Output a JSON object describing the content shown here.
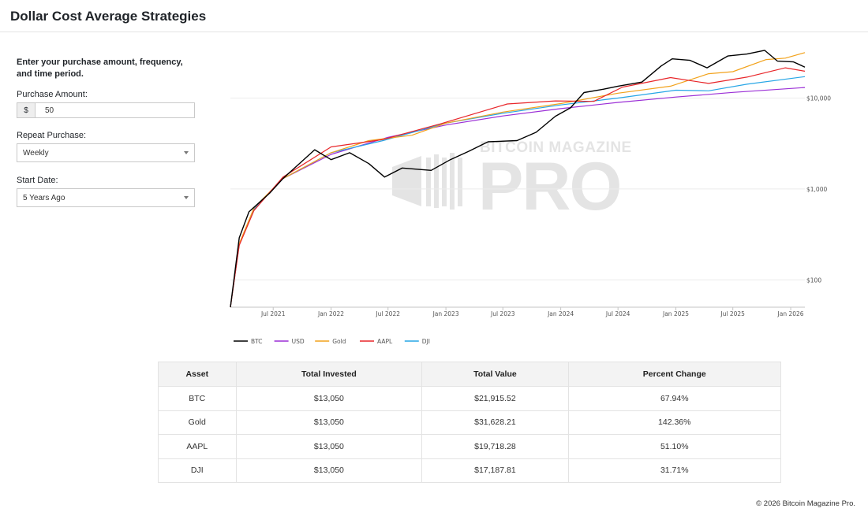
{
  "header": {
    "title": "Dollar Cost Average Strategies"
  },
  "form": {
    "intro": "Enter your purchase amount, frequency, and time period.",
    "amount_label": "Purchase Amount:",
    "currency_symbol": "$",
    "amount_value": "50",
    "repeat_label": "Repeat Purchase:",
    "repeat_value": "Weekly",
    "start_label": "Start Date:",
    "start_value": "5 Years Ago"
  },
  "watermark": "BITCOIN MAGAZINE PRO",
  "chart_data": {
    "type": "line",
    "title": "",
    "xlabel": "",
    "ylabel": "",
    "y_scale": "log",
    "ylim": [
      50,
      40000
    ],
    "xlim": [
      "2021-02-15",
      "2026-02-15"
    ],
    "grid": true,
    "legend_position": "bottom-left",
    "x_ticks": [
      "Jul 2021",
      "Jan 2022",
      "Jul 2022",
      "Jan 2023",
      "Jul 2023",
      "Jan 2024",
      "Jul 2024",
      "Jan 2025",
      "Jul 2025",
      "Jan 2026"
    ],
    "x_tick_dates": [
      "2021-07-01",
      "2022-01-01",
      "2022-07-01",
      "2023-01-01",
      "2023-07-01",
      "2024-01-01",
      "2024-07-01",
      "2025-01-01",
      "2025-07-01",
      "2026-01-01"
    ],
    "y_ticks": [
      {
        "value": 100,
        "label": "$100"
      },
      {
        "value": 1000,
        "label": "$1,000"
      },
      {
        "value": 10000,
        "label": "$10,000"
      }
    ],
    "series": [
      {
        "name": "BTC",
        "color": "#000000",
        "points": [
          [
            "2021-02-15",
            50
          ],
          [
            "2021-03-15",
            290
          ],
          [
            "2021-04-15",
            560
          ],
          [
            "2021-05-20",
            720
          ],
          [
            "2021-06-20",
            900
          ],
          [
            "2021-08-01",
            1300
          ],
          [
            "2021-09-15",
            1800
          ],
          [
            "2021-11-10",
            2700
          ],
          [
            "2022-01-01",
            2100
          ],
          [
            "2022-03-01",
            2500
          ],
          [
            "2022-05-01",
            1900
          ],
          [
            "2022-06-20",
            1350
          ],
          [
            "2022-08-15",
            1700
          ],
          [
            "2022-11-15",
            1600
          ],
          [
            "2023-01-15",
            2100
          ],
          [
            "2023-03-15",
            2600
          ],
          [
            "2023-05-15",
            3300
          ],
          [
            "2023-08-15",
            3400
          ],
          [
            "2023-10-15",
            4200
          ],
          [
            "2023-12-15",
            6300
          ],
          [
            "2024-02-01",
            7800
          ],
          [
            "2024-03-15",
            11500
          ],
          [
            "2024-05-15",
            12500
          ],
          [
            "2024-07-01",
            13500
          ],
          [
            "2024-09-15",
            15000
          ],
          [
            "2024-11-15",
            22500
          ],
          [
            "2024-12-20",
            27000
          ],
          [
            "2025-02-15",
            26000
          ],
          [
            "2025-04-10",
            21500
          ],
          [
            "2025-06-15",
            29000
          ],
          [
            "2025-08-15",
            30500
          ],
          [
            "2025-10-10",
            33500
          ],
          [
            "2025-11-20",
            25500
          ],
          [
            "2026-01-10",
            25000
          ],
          [
            "2026-02-15",
            21915
          ]
        ]
      },
      {
        "name": "USD",
        "color": "#9b2fd6",
        "points": [
          [
            "2021-02-15",
            50
          ],
          [
            "2021-03-15",
            250
          ],
          [
            "2021-05-01",
            600
          ],
          [
            "2021-08-01",
            1300
          ],
          [
            "2022-01-01",
            2400
          ],
          [
            "2022-07-01",
            3700
          ],
          [
            "2023-01-01",
            5050
          ],
          [
            "2023-07-01",
            6350
          ],
          [
            "2024-01-01",
            7650
          ],
          [
            "2024-07-01",
            8950
          ],
          [
            "2025-01-01",
            10250
          ],
          [
            "2025-07-01",
            11550
          ],
          [
            "2026-02-15",
            13050
          ]
        ]
      },
      {
        "name": "Gold",
        "color": "#f2a21b",
        "points": [
          [
            "2021-02-15",
            50
          ],
          [
            "2021-03-15",
            250
          ],
          [
            "2021-05-01",
            620
          ],
          [
            "2021-08-01",
            1300
          ],
          [
            "2022-01-01",
            2500
          ],
          [
            "2022-05-01",
            3400
          ],
          [
            "2022-09-15",
            3900
          ],
          [
            "2023-01-01",
            5300
          ],
          [
            "2023-07-01",
            7000
          ],
          [
            "2024-01-01",
            8700
          ],
          [
            "2024-07-01",
            11300
          ],
          [
            "2024-12-15",
            13500
          ],
          [
            "2025-04-15",
            18500
          ],
          [
            "2025-07-01",
            19500
          ],
          [
            "2025-10-15",
            26500
          ],
          [
            "2025-12-15",
            27500
          ],
          [
            "2026-02-15",
            31628
          ]
        ]
      },
      {
        "name": "AAPL",
        "color": "#e8262a",
        "points": [
          [
            "2021-02-15",
            50
          ],
          [
            "2021-03-15",
            240
          ],
          [
            "2021-05-01",
            580
          ],
          [
            "2021-08-01",
            1350
          ],
          [
            "2022-01-01",
            2900
          ],
          [
            "2022-06-15",
            3500
          ],
          [
            "2022-12-15",
            5200
          ],
          [
            "2023-07-15",
            8600
          ],
          [
            "2023-12-15",
            9300
          ],
          [
            "2024-04-15",
            9200
          ],
          [
            "2024-07-15",
            13200
          ],
          [
            "2024-12-15",
            16800
          ],
          [
            "2025-04-15",
            14500
          ],
          [
            "2025-08-15",
            17000
          ],
          [
            "2025-12-15",
            21500
          ],
          [
            "2026-02-15",
            19718
          ]
        ]
      },
      {
        "name": "DJI",
        "color": "#27a6e6",
        "points": [
          [
            "2021-02-15",
            50
          ],
          [
            "2021-03-15",
            245
          ],
          [
            "2021-05-01",
            600
          ],
          [
            "2021-08-01",
            1300
          ],
          [
            "2022-01-01",
            2500
          ],
          [
            "2022-06-15",
            3400
          ],
          [
            "2023-01-01",
            5300
          ],
          [
            "2023-07-01",
            6800
          ],
          [
            "2024-01-01",
            8400
          ],
          [
            "2024-07-01",
            10000
          ],
          [
            "2025-01-01",
            12200
          ],
          [
            "2025-04-15",
            12000
          ],
          [
            "2025-08-15",
            14200
          ],
          [
            "2026-02-15",
            17187
          ]
        ]
      }
    ]
  },
  "table": {
    "headers": [
      "Asset",
      "Total Invested",
      "Total Value",
      "Percent Change"
    ],
    "rows": [
      [
        "BTC",
        "$13,050",
        "$21,915.52",
        "67.94%"
      ],
      [
        "Gold",
        "$13,050",
        "$31,628.21",
        "142.36%"
      ],
      [
        "AAPL",
        "$13,050",
        "$19,718.28",
        "51.10%"
      ],
      [
        "DJI",
        "$13,050",
        "$17,187.81",
        "31.71%"
      ]
    ]
  },
  "footer": {
    "copyright": "© 2026 Bitcoin Magazine Pro."
  }
}
